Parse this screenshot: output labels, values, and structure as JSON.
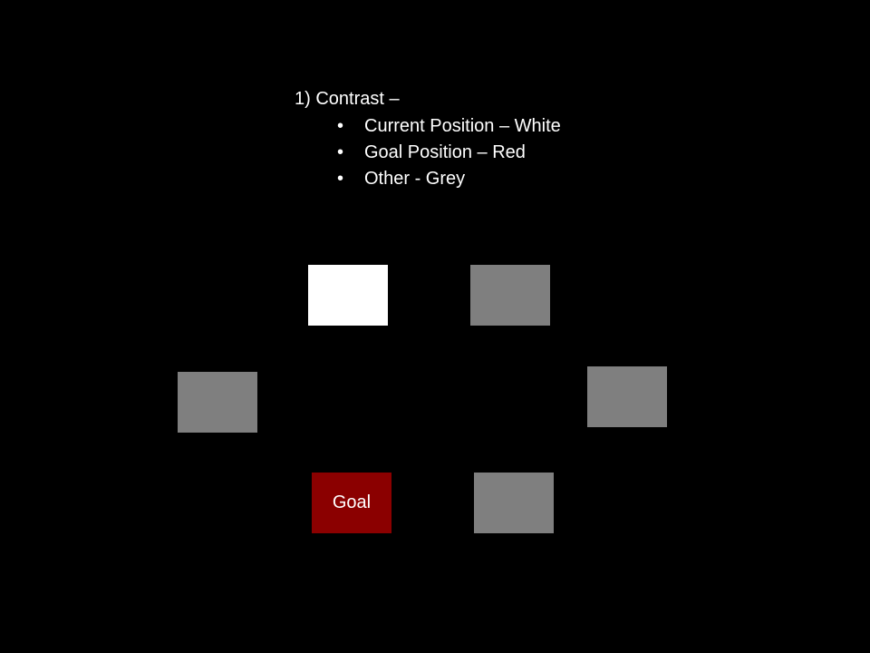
{
  "slide": {
    "heading": "1) Contrast –",
    "bullets": [
      "Current Position – White",
      "Goal Position – Red",
      "Other - Grey"
    ],
    "bullet_char": "•",
    "goal_label": "Goal"
  },
  "colors": {
    "background": "#000000",
    "text": "#ffffff",
    "current": "#ffffff",
    "goal": "#8b0000",
    "other": "#7f7f7f"
  }
}
